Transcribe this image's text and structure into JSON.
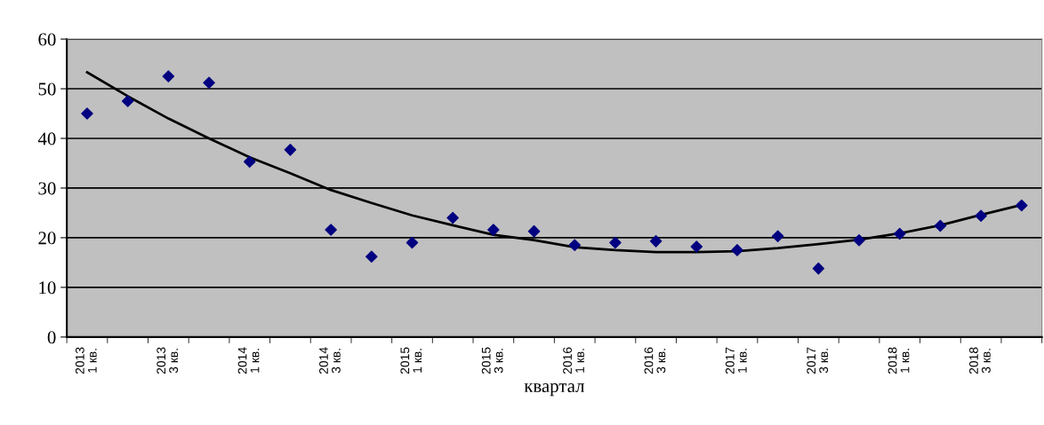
{
  "chart_data": {
    "type": "scatter",
    "xlabel": "квартал",
    "categories": [
      "2013\n1 кв.",
      null,
      "2013\n3 кв.",
      null,
      "2014\n1 кв.",
      null,
      "2014\n3 кв.",
      null,
      "2015\n1 кв.",
      null,
      "2015\n3 кв.",
      null,
      "2016\n1 кв.",
      null,
      "2016\n3 кв.",
      null,
      "2017\n1 кв.",
      null,
      "2017\n3 кв.",
      null,
      "2018\n1 кв.",
      null,
      "2018\n3 кв.",
      null
    ],
    "series": [
      {
        "color": "#000080",
        "marker": "diamond",
        "values": [
          45,
          47.5,
          52.5,
          51.2,
          35.3,
          37.7,
          21.6,
          16.2,
          19,
          24,
          21.6,
          21.3,
          18.5,
          19,
          19.3,
          18.2,
          17.5,
          20.3,
          13.8,
          19.5,
          20.8,
          22.4,
          24.4,
          26.5
        ]
      },
      {
        "type": "line",
        "color": "#000000",
        "marker": "none",
        "line_style": "solid",
        "values": [
          53.3,
          48.5,
          44,
          40,
          36.2,
          33,
          29.6,
          27,
          24.5,
          22.5,
          20.6,
          19.5,
          18.1,
          17.5,
          17.1,
          17.1,
          17.3,
          17.9,
          18.7,
          19.6,
          20.9,
          22.5,
          24.6,
          26.6
        ]
      }
    ],
    "ylim": [
      0,
      60
    ],
    "yticks": [
      0,
      10,
      20,
      30,
      40,
      50,
      60
    ],
    "grid": "y"
  }
}
